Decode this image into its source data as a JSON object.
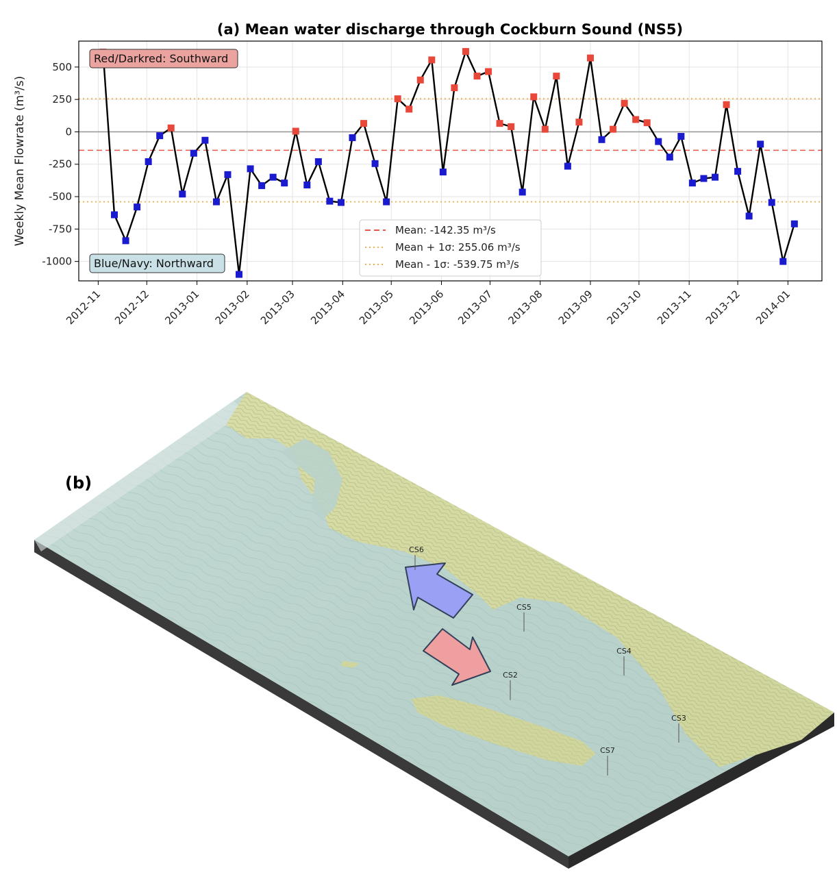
{
  "panel_a": {
    "title": "(a) Mean water discharge through Cockburn Sound (NS5)",
    "note_south": "Red/Darkred: Southward",
    "note_north": "Blue/Navy: Northward",
    "legend": [
      {
        "label": "Mean: -142.35 m³/s",
        "color": "#e8554a",
        "style": "dashed"
      },
      {
        "label": "Mean + 1σ: 255.06 m³/s",
        "color": "#f3b04a",
        "style": "dotted"
      },
      {
        "label": "Mean - 1σ: -539.75 m³/s",
        "color": "#f3b04a",
        "style": "dotted"
      }
    ]
  },
  "chart_data": {
    "type": "line",
    "title": "(a) Mean water discharge through Cockburn Sound (NS5)",
    "xlabel": "",
    "ylabel": "Weekly Mean Flowrate (m³/s)",
    "ylim": [
      -1150,
      700
    ],
    "yticks": [
      500,
      250,
      0,
      -250,
      -500,
      -750,
      -1000
    ],
    "xticks": [
      "2012-11",
      "2012-12",
      "2013-01",
      "2013-02",
      "2013-03",
      "2013-04",
      "2013-05",
      "2013-06",
      "2013-07",
      "2013-08",
      "2013-09",
      "2013-10",
      "2013-11",
      "2013-12",
      "2014-01"
    ],
    "reference_lines": {
      "mean": -142.35,
      "mean_plus_1sd": 255.06,
      "mean_minus_1sd": -539.75,
      "zero": 0
    },
    "grid": true,
    "legend_position": "lower-center",
    "colors": {
      "positive": "#e8483a",
      "negative": "#1a1acf",
      "line": "#000000"
    },
    "series": [
      {
        "x": [
          "2012-11-04",
          "2012-11-11",
          "2012-11-18",
          "2012-11-25",
          "2012-12-02",
          "2012-12-09",
          "2012-12-16",
          "2012-12-23",
          "2012-12-30",
          "2013-01-06",
          "2013-01-13",
          "2013-01-20",
          "2013-01-27",
          "2013-02-03",
          "2013-02-10",
          "2013-02-17",
          "2013-02-24",
          "2013-03-03",
          "2013-03-10",
          "2013-03-17",
          "2013-03-24",
          "2013-03-31",
          "2013-04-07",
          "2013-04-14",
          "2013-04-21",
          "2013-04-28",
          "2013-05-05",
          "2013-05-12",
          "2013-05-19",
          "2013-05-26",
          "2013-06-02",
          "2013-06-09",
          "2013-06-16",
          "2013-06-23",
          "2013-06-30",
          "2013-07-07",
          "2013-07-14",
          "2013-07-21",
          "2013-07-28",
          "2013-08-04",
          "2013-08-11",
          "2013-08-18",
          "2013-08-25",
          "2013-09-01",
          "2013-09-08",
          "2013-09-15",
          "2013-09-22",
          "2013-09-29",
          "2013-10-06",
          "2013-10-13",
          "2013-10-20",
          "2013-10-27",
          "2013-11-03",
          "2013-11-10",
          "2013-11-17",
          "2013-11-24",
          "2013-12-01",
          "2013-12-08",
          "2013-12-15",
          "2013-12-22",
          "2013-12-29",
          "2014-01-05"
        ],
        "values": [
          615,
          -640,
          -840,
          -580,
          -230,
          -30,
          30,
          -480,
          -165,
          -65,
          -540,
          -330,
          -1100,
          -285,
          -415,
          -350,
          -395,
          5,
          -410,
          -230,
          -535,
          -545,
          -45,
          65,
          -245,
          -540,
          255,
          175,
          400,
          555,
          -310,
          340,
          620,
          430,
          465,
          65,
          40,
          -465,
          270,
          20,
          430,
          -265,
          75,
          570,
          -60,
          20,
          220,
          95,
          70,
          -75,
          -195,
          -35,
          -395,
          -360,
          -350,
          210,
          -305,
          -650,
          -95,
          -545,
          -1000,
          -710
        ]
      }
    ]
  },
  "panel_b": {
    "label": "(b)",
    "stations": [
      "CS6",
      "CS5",
      "CS4",
      "CS2",
      "CS3",
      "CS7"
    ]
  }
}
